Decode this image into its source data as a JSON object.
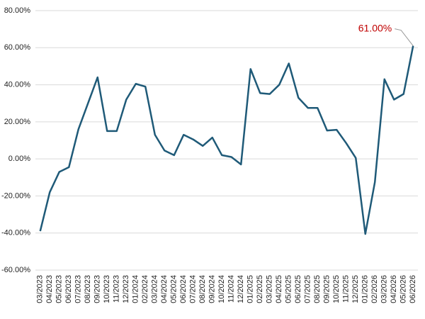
{
  "chart_data": {
    "type": "line",
    "categories": [
      "03/2023",
      "04/2023",
      "05/2023",
      "06/2023",
      "07/2023",
      "08/2023",
      "09/2023",
      "10/2023",
      "11/2023",
      "12/2023",
      "01/2024",
      "02/2024",
      "03/2024",
      "04/2024",
      "05/2024",
      "06/2024",
      "07/2024",
      "08/2024",
      "09/2024",
      "10/2024",
      "11/2024",
      "12/2024",
      "01/2025",
      "02/2025",
      "03/2025",
      "04/2025",
      "05/2025",
      "06/2025",
      "07/2025",
      "08/2025",
      "09/2025",
      "10/2025",
      "11/2025",
      "12/2025",
      "01/2026",
      "02/2026",
      "03/2026",
      "04/2026",
      "05/2026",
      "06/2026"
    ],
    "values": [
      -39,
      -18,
      -7,
      -4.5,
      16,
      30,
      44,
      15,
      15,
      32,
      40.5,
      39,
      13,
      4.5,
      2,
      13,
      10.5,
      7,
      11.5,
      2,
      1,
      -3,
      48.5,
      35.5,
      35,
      40,
      51.5,
      33,
      27.5,
      27.5,
      15.3,
      15.7,
      8.5,
      0.5,
      -40.5,
      -12.5,
      43,
      32,
      35,
      61
    ],
    "color": "#1f5a78",
    "ylim": [
      -60,
      80
    ],
    "yticks": [
      {
        "value": -60,
        "label": "-60.00%"
      },
      {
        "value": -40,
        "label": "-40.00%"
      },
      {
        "value": -20,
        "label": "-20.00%"
      },
      {
        "value": 0,
        "label": "0.00%"
      },
      {
        "value": 20,
        "label": "20.00%"
      },
      {
        "value": 40,
        "label": "40.00%"
      },
      {
        "value": 60,
        "label": "60.00%"
      },
      {
        "value": 80,
        "label": "80.00%"
      }
    ],
    "grid": true,
    "annotation": "61.00%",
    "annotation_color": "#c00000"
  }
}
